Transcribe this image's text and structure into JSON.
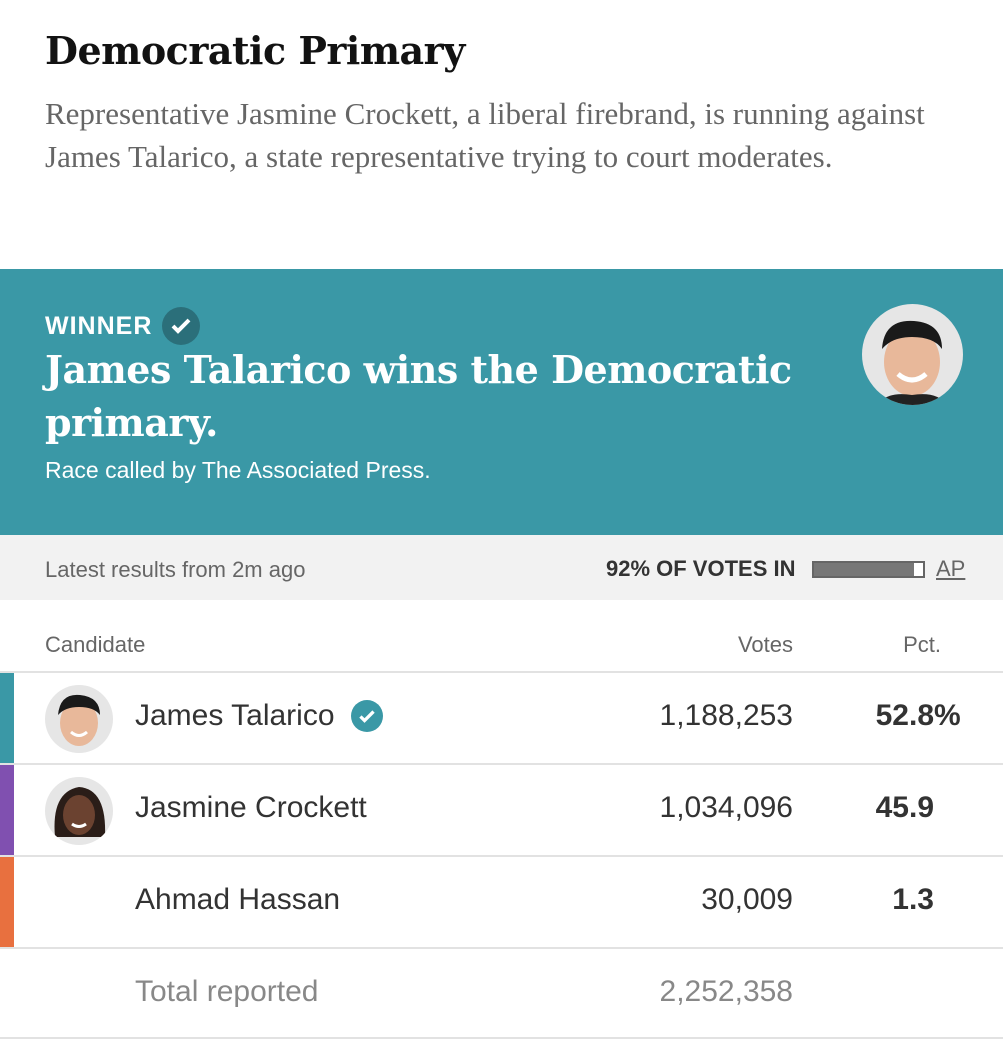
{
  "section": {
    "title": "Democratic Primary",
    "description": "Representative Jasmine Crockett, a liberal firebrand, is running against James Talarico, a state representative trying to court moderates."
  },
  "banner": {
    "label": "WINNER",
    "headline": "James Talarico wins the Democratic primary.",
    "called_by": "Race called by The Associated Press.",
    "color": "#3a98a6"
  },
  "status": {
    "latest": "Latest results from 2m ago",
    "votes_in": "92% OF VOTES IN",
    "votes_in_pct": 92,
    "source": "AP"
  },
  "table": {
    "headers": {
      "candidate": "Candidate",
      "votes": "Votes",
      "pct": "Pct."
    },
    "rows": [
      {
        "name": "James Talarico",
        "votes": "1,188,253",
        "pct": "52.8",
        "pct_unit": "%",
        "color": "#3a98a6",
        "winner": true,
        "photo": true
      },
      {
        "name": "Jasmine Crockett",
        "votes": "1,034,096",
        "pct": "45.9",
        "pct_unit": "",
        "color": "#8050b0",
        "winner": false,
        "photo": true
      },
      {
        "name": "Ahmad Hassan",
        "votes": "30,009",
        "pct": "1.3",
        "pct_unit": "",
        "color": "#e8703f",
        "winner": false,
        "photo": false
      }
    ],
    "total": {
      "label": "Total reported",
      "votes": "2,252,358"
    }
  }
}
